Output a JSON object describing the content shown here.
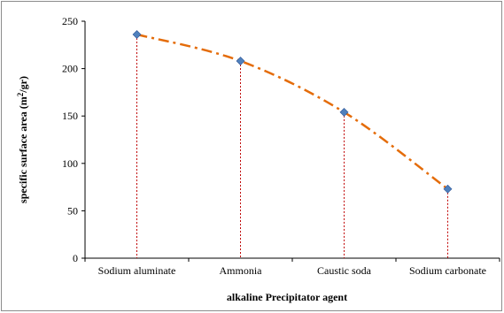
{
  "chart_data": {
    "type": "line",
    "categories": [
      "Sodium aluminate",
      "Ammonia",
      "Caustic soda",
      "Sodium carbonate"
    ],
    "series": [
      {
        "values": [
          236,
          208,
          154,
          73
        ],
        "color": "#e46c0a",
        "marker_color": "#4f81bd",
        "line_style": "dash-dot"
      }
    ],
    "xlabel": "alkaline Precipitator agent",
    "ylabel_main": "specific surface area (m",
    "ylabel_sup": "2",
    "ylabel_end": "/gr)",
    "ylim": [
      0,
      250
    ],
    "yticks": [
      "0",
      "50",
      "100",
      "150",
      "200",
      "250"
    ],
    "drop_lines": true,
    "drop_line_color": "#c00000",
    "grid": false
  }
}
